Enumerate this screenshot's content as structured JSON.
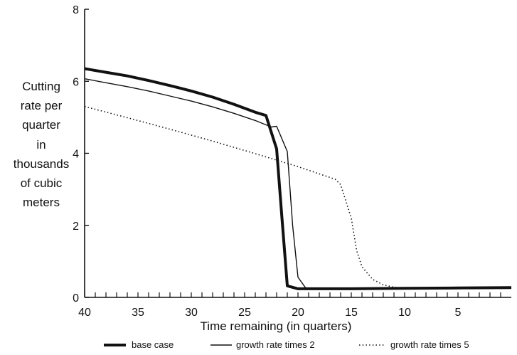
{
  "chart_data": {
    "type": "line",
    "xlabel": "Time remaining (in quarters)",
    "ylabel_lines": [
      "Cutting",
      "rate per",
      "quarter",
      "in",
      "thousands",
      "of cubic",
      "meters"
    ],
    "xlim": [
      40,
      0
    ],
    "ylim": [
      0,
      8
    ],
    "xticks": [
      40,
      35,
      30,
      25,
      20,
      15,
      10,
      5
    ],
    "yticks": [
      0,
      2,
      4,
      6,
      8
    ],
    "x_minor_tick_step": 1,
    "grid": false,
    "legend_position": "bottom",
    "series": [
      {
        "name": "base case",
        "style": "thick-solid",
        "x": [
          40,
          38,
          36,
          34,
          32,
          30,
          28,
          26,
          24,
          23,
          22,
          21.5,
          21,
          20,
          19,
          15,
          10,
          5,
          0
        ],
        "y": [
          6.35,
          6.25,
          6.15,
          6.02,
          5.88,
          5.73,
          5.56,
          5.36,
          5.14,
          5.05,
          4.12,
          2.2,
          0.32,
          0.24,
          0.24,
          0.24,
          0.25,
          0.26,
          0.27
        ]
      },
      {
        "name": "growth rate times 2",
        "style": "thin-solid",
        "x": [
          40,
          38,
          36,
          34,
          32,
          30,
          28,
          26,
          24,
          22.5,
          22,
          21,
          20.5,
          20,
          19.3,
          19,
          15,
          10,
          5,
          0
        ],
        "y": [
          6.07,
          5.96,
          5.85,
          5.73,
          5.59,
          5.45,
          5.29,
          5.11,
          4.91,
          4.73,
          4.75,
          4.05,
          2.0,
          0.56,
          0.27,
          0.25,
          0.25,
          0.26,
          0.26,
          0.27
        ]
      },
      {
        "name": "growth rate times 5",
        "style": "dotted",
        "x": [
          40,
          36,
          32,
          28,
          24,
          22,
          20,
          18,
          16.5,
          16,
          15,
          14.5,
          14,
          13,
          12,
          11,
          10,
          8,
          5,
          0
        ],
        "y": [
          5.3,
          4.99,
          4.67,
          4.34,
          3.99,
          3.81,
          3.63,
          3.43,
          3.28,
          3.13,
          2.2,
          1.3,
          0.85,
          0.5,
          0.35,
          0.28,
          0.25,
          0.25,
          0.26,
          0.27
        ]
      }
    ]
  }
}
